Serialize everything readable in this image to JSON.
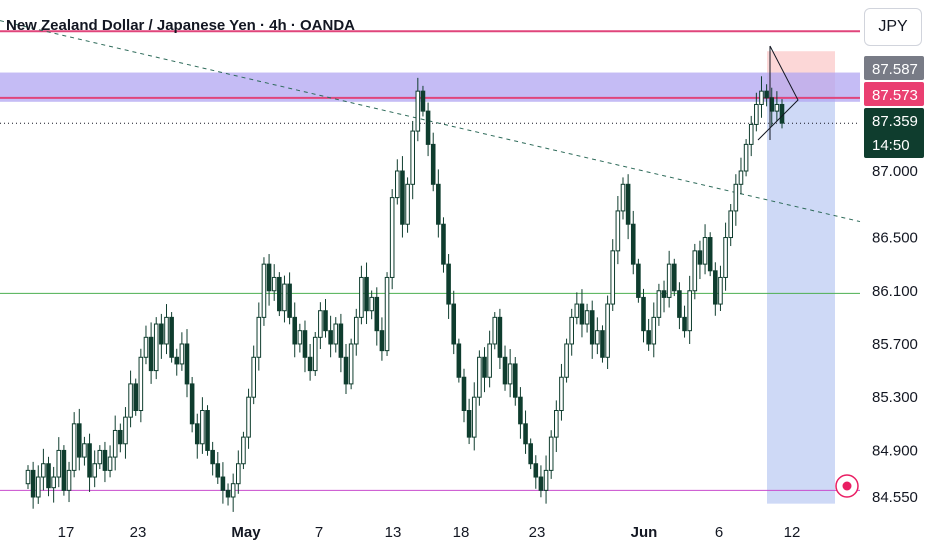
{
  "header": {
    "title": "New Zealand Dollar / Japanese Yen · 4h · OANDA",
    "currency_button": "JPY"
  },
  "colors": {
    "up": "#ffffff",
    "down": "#0f3d2e",
    "wick": "#0f3d2e",
    "resistance_zone": "#b2a6f2",
    "pink_line": "#e0457b",
    "green_line": "#4caf50",
    "magenta_line": "#c84ccd",
    "projection_blue": "#c6d2f5",
    "projection_red": "#fcd3d3",
    "price_tag_grey": "#787b86",
    "price_tag_pink": "#ea3f71",
    "price_tag_dark": "#0f3d2e"
  },
  "alert_icon": "record-icon",
  "chart_data": {
    "type": "candlestick",
    "title": "New Zealand Dollar / Japanese Yen · 4h · OANDA",
    "y_ticks": [
      "87.000",
      "86.500",
      "86.100",
      "85.700",
      "85.300",
      "84.900",
      "84.550"
    ],
    "x_ticks": [
      {
        "label": "17",
        "bold": false
      },
      {
        "label": "23",
        "bold": false
      },
      {
        "label": "May",
        "bold": true
      },
      {
        "label": "7",
        "bold": false
      },
      {
        "label": "13",
        "bold": false
      },
      {
        "label": "18",
        "bold": false
      },
      {
        "label": "23",
        "bold": false
      },
      {
        "label": "Jun",
        "bold": true
      },
      {
        "label": "6",
        "bold": false
      },
      {
        "label": "12",
        "bold": false
      }
    ],
    "price_tags": [
      {
        "label": "87.587",
        "value": 87.587,
        "style": "grey"
      },
      {
        "label": "87.573",
        "value": 87.573,
        "style": "pink"
      },
      {
        "label": "87.359",
        "sub": "14:50",
        "value": 87.359,
        "style": "dark"
      }
    ],
    "horizontal_lines": [
      {
        "name": "top-pink-line",
        "value": 88.05,
        "color": "pink"
      },
      {
        "name": "resistance-pink-line",
        "value": 87.55,
        "color": "pink"
      },
      {
        "name": "support-green-line",
        "value": 86.08,
        "color": "green"
      },
      {
        "name": "bottom-magenta-line",
        "value": 84.6,
        "color": "magenta"
      }
    ],
    "resistance_zone": {
      "from": 87.52,
      "to": 87.74
    },
    "projection": {
      "stop": 87.9,
      "entry": 87.56,
      "target": 84.5
    },
    "ohlc_path": [
      84.65,
      84.75,
      84.55,
      84.7,
      84.8,
      84.62,
      84.7,
      84.9,
      84.6,
      84.75,
      85.1,
      84.85,
      84.95,
      84.7,
      84.8,
      84.9,
      84.75,
      84.85,
      85.05,
      84.95,
      85.15,
      85.4,
      85.2,
      85.6,
      85.75,
      85.5,
      85.85,
      85.7,
      85.9,
      85.6,
      85.55,
      85.7,
      85.4,
      85.1,
      84.95,
      85.2,
      84.9,
      84.8,
      84.7,
      84.6,
      84.55,
      84.65,
      84.8,
      85.0,
      85.3,
      85.6,
      85.9,
      86.3,
      86.1,
      86.2,
      85.95,
      86.15,
      85.9,
      85.7,
      85.8,
      85.6,
      85.5,
      85.75,
      85.95,
      85.8,
      85.7,
      85.85,
      85.6,
      85.4,
      85.7,
      85.9,
      86.2,
      85.95,
      86.05,
      85.8,
      85.65,
      86.2,
      86.8,
      87.0,
      86.6,
      86.9,
      87.3,
      87.6,
      87.45,
      87.2,
      86.9,
      86.6,
      86.3,
      86.0,
      85.7,
      85.45,
      85.2,
      85.0,
      85.3,
      85.6,
      85.45,
      85.7,
      85.9,
      85.6,
      85.4,
      85.55,
      85.3,
      85.1,
      84.95,
      84.8,
      84.7,
      84.6,
      84.75,
      85.0,
      85.2,
      85.45,
      85.7,
      85.9,
      86.0,
      85.85,
      85.95,
      85.7,
      85.8,
      85.6,
      86.0,
      86.4,
      86.7,
      86.9,
      86.6,
      86.3,
      86.05,
      85.8,
      85.7,
      85.9,
      86.1,
      86.05,
      86.3,
      86.1,
      85.9,
      85.8,
      86.1,
      86.4,
      86.3,
      86.5,
      86.25,
      86.0,
      86.2,
      86.5,
      86.7,
      86.9,
      87.0,
      87.2,
      87.35,
      87.5,
      87.6,
      87.55,
      87.45,
      87.5,
      87.36
    ]
  }
}
